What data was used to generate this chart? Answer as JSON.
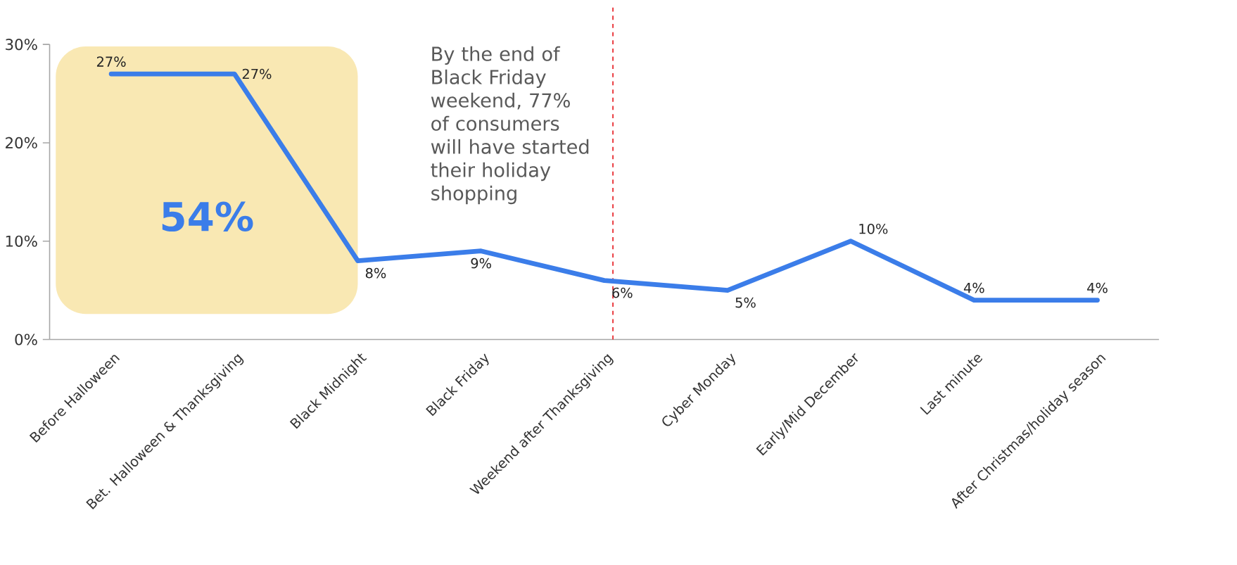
{
  "chart_data": {
    "type": "line",
    "categories": [
      "Before Halloween",
      "Bet. Halloween & Thanksgiving",
      "Black Midnight",
      "Black Friday",
      "Weekend after Thanksgiving",
      "Cyber Monday",
      "Early/Mid December",
      "Last minute",
      "After Christmas/holiday season"
    ],
    "series": [
      {
        "color": "#3b7de9",
        "values": [
          27,
          27,
          8,
          9,
          6,
          5,
          10,
          4,
          4
        ],
        "value_labels": [
          "27%",
          "27%",
          "8%",
          "9%",
          "6%",
          "5%",
          "10%",
          "4%",
          "4%"
        ]
      }
    ],
    "ylim": [
      0,
      30
    ],
    "yticks": [
      {
        "value": 0,
        "label": "0%"
      },
      {
        "value": 10,
        "label": "10%"
      },
      {
        "value": 20,
        "label": "20%"
      },
      {
        "value": 30,
        "label": "30%"
      }
    ],
    "grid": false,
    "marker": "none",
    "line_style": "solid",
    "ref_lines": [
      {
        "axis": "x",
        "value": "Weekend after Thanksgiving",
        "color": "#e8262b",
        "line_style": "dashed"
      }
    ],
    "bands": [
      {
        "axis": "x",
        "from": "Before Halloween",
        "to": "Black Midnight",
        "label": "54%",
        "color": "#f9e8b3"
      }
    ],
    "annotations": [
      "By the end of Black Friday weekend, 77% of consumers will have started their holiday shopping"
    ]
  }
}
